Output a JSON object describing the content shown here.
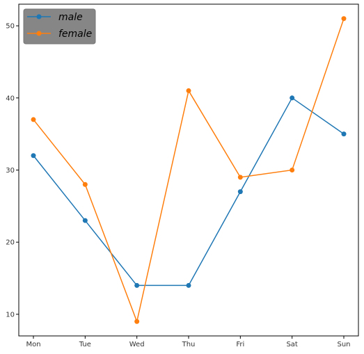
{
  "chart_data": {
    "type": "line",
    "categories": [
      "Mon",
      "Tue",
      "Wed",
      "Thu",
      "Fri",
      "Sat",
      "Sun"
    ],
    "series": [
      {
        "name": "male",
        "color": "#1f77b4",
        "values": [
          32,
          23,
          14,
          14,
          27,
          40,
          35
        ]
      },
      {
        "name": "female",
        "color": "#ff7f0e",
        "values": [
          37,
          28,
          9,
          41,
          29,
          30,
          51
        ]
      }
    ],
    "title": "",
    "xlabel": "",
    "ylabel": "",
    "ylim": [
      7,
      53
    ],
    "yticks": [
      10,
      20,
      30,
      40,
      50
    ],
    "grid": false,
    "legend": {
      "placement": "top-left",
      "background": "#808080"
    }
  }
}
